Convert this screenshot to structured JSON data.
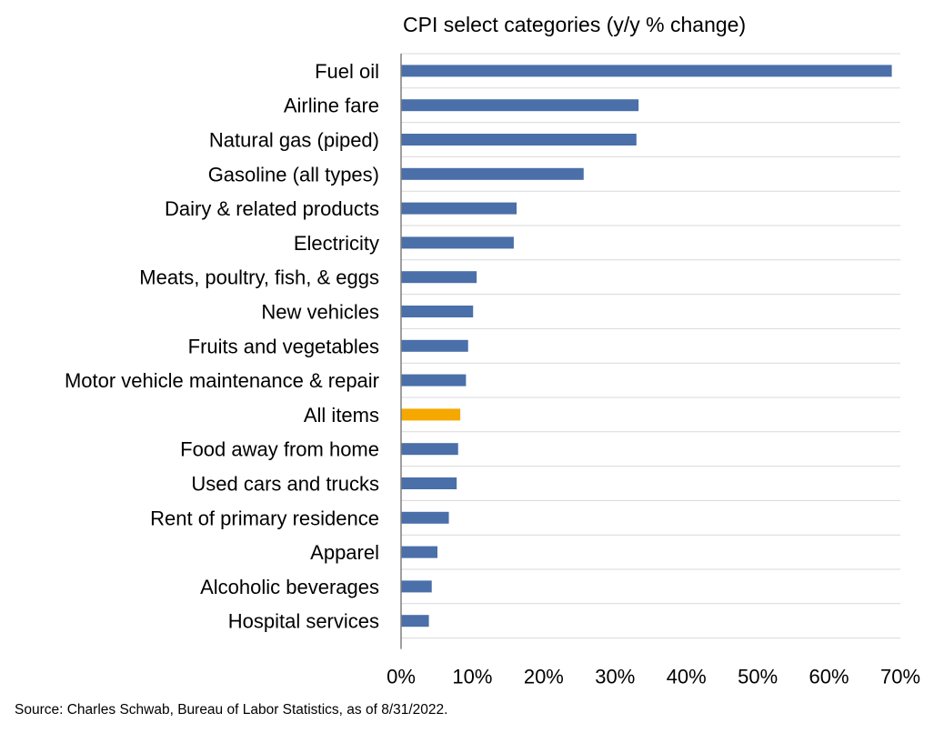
{
  "chart_data": {
    "type": "bar",
    "orientation": "horizontal",
    "title": "CPI select categories (y/y % change)",
    "categories": [
      "Fuel oil",
      "Airline fare",
      "Natural gas (piped)",
      "Gasoline (all types)",
      "Dairy & related products",
      "Electricity",
      "Meats, poultry, fish, & eggs",
      "New vehicles",
      "Fruits and vegetables",
      "Motor vehicle maintenance & repair",
      "All items",
      "Food away from home",
      "Used cars and trucks",
      "Rent of primary residence",
      "Apparel",
      "Alcoholic beverages",
      "Hospital services"
    ],
    "values": [
      68.8,
      33.3,
      33.0,
      25.6,
      16.2,
      15.8,
      10.6,
      10.1,
      9.4,
      9.1,
      8.3,
      8.0,
      7.8,
      6.7,
      5.1,
      4.3,
      3.9
    ],
    "highlight": "All items",
    "xlim": [
      0,
      70
    ],
    "xticks": [
      0,
      10,
      20,
      30,
      40,
      50,
      60,
      70
    ],
    "xtick_labels": [
      "0%",
      "10%",
      "20%",
      "30%",
      "40%",
      "50%",
      "60%",
      "70%"
    ],
    "grid": true,
    "legend": "none",
    "colors": {
      "bar": "#4a6fa9",
      "highlight": "#f5a800"
    }
  },
  "footer": {
    "source": "Source: Charles Schwab, Bureau of Labor Statistics, as of 8/31/2022."
  }
}
